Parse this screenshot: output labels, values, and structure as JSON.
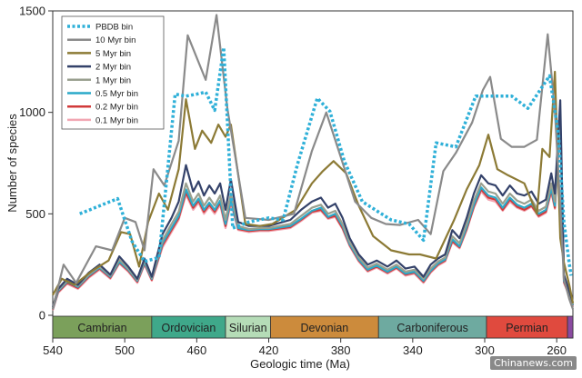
{
  "chart_data": {
    "type": "line",
    "xlabel": "Geologic time (Ma)",
    "ylabel": "Number of species",
    "xlim": [
      540,
      251
    ],
    "ylim": [
      0,
      1500
    ],
    "x_ticks": [
      540,
      500,
      460,
      420,
      380,
      340,
      300,
      260
    ],
    "y_ticks": [
      0,
      500,
      1000,
      1500
    ],
    "grid": false,
    "legend_position": "top-left",
    "periods": [
      {
        "name": "Cambrian",
        "start": 540,
        "end": 485,
        "color": "#7ba05b"
      },
      {
        "name": "Ordovician",
        "start": 485,
        "end": 444,
        "color": "#3fa88a"
      },
      {
        "name": "Silurian",
        "start": 444,
        "end": 419,
        "color": "#b5dcb7"
      },
      {
        "name": "Devonian",
        "start": 419,
        "end": 359,
        "color": "#cc8b3c"
      },
      {
        "name": "Carboniferous",
        "start": 359,
        "end": 299,
        "color": "#6eaaa0"
      },
      {
        "name": "Permian",
        "start": 299,
        "end": 254,
        "color": "#e04a3e"
      },
      {
        "name": "",
        "start": 254,
        "end": 251,
        "color": "#8a4aa0"
      }
    ],
    "series": [
      {
        "name": "PBDB bin",
        "color": "#2fb0d8",
        "dashed": true,
        "x": [
          525,
          504,
          496,
          489,
          481,
          472,
          466,
          460,
          455,
          450,
          445,
          440,
          431,
          420,
          412,
          404,
          393,
          386,
          378,
          368,
          360,
          352,
          342,
          334,
          327,
          316,
          305,
          297,
          285,
          276,
          264,
          259,
          256,
          253,
          252
        ],
        "y": [
          500,
          575,
          365,
          265,
          285,
          1090,
          1080,
          1090,
          1100,
          1010,
          1320,
          430,
          460,
          480,
          470,
          745,
          1070,
          1005,
          760,
          560,
          515,
          470,
          450,
          370,
          850,
          830,
          1080,
          1080,
          1080,
          1020,
          1180,
          890,
          460,
          255,
          195
        ]
      },
      {
        "name": "10 Myr bin",
        "color": "#8a8a8a",
        "dashed": false,
        "x": [
          540,
          534,
          527,
          516,
          507,
          500,
          494,
          489,
          484,
          478,
          470,
          465,
          455,
          449,
          443,
          433,
          420,
          406,
          396,
          388,
          380,
          372,
          363,
          355,
          347,
          337,
          330,
          323,
          316,
          307,
          301,
          297,
          291,
          285,
          278,
          271,
          265,
          261,
          258,
          256,
          253,
          251
        ],
        "y": [
          30,
          250,
          160,
          340,
          320,
          480,
          460,
          320,
          720,
          640,
          860,
          1380,
          1160,
          1480,
          1020,
          480,
          470,
          500,
          810,
          1000,
          780,
          560,
          480,
          450,
          445,
          470,
          400,
          710,
          800,
          950,
          1110,
          1175,
          870,
          830,
          830,
          865,
          1385,
          1005,
          540,
          180,
          80,
          30
        ]
      },
      {
        "name": "5 Myr bin",
        "color": "#8c7a35",
        "dashed": false,
        "x": [
          540,
          535,
          528,
          518,
          509,
          502,
          497,
          492,
          487,
          481,
          476,
          470,
          466,
          461,
          457,
          452,
          448,
          444,
          441,
          433,
          425,
          418,
          405,
          396,
          390,
          384,
          377,
          370,
          362,
          352,
          342,
          336,
          327,
          317,
          310,
          303,
          298,
          293,
          287,
          278,
          271,
          268,
          264,
          261,
          258,
          256,
          253,
          251
        ],
        "y": [
          100,
          180,
          150,
          220,
          270,
          410,
          400,
          240,
          460,
          600,
          520,
          720,
          1065,
          820,
          910,
          850,
          940,
          880,
          940,
          450,
          440,
          450,
          520,
          650,
          710,
          760,
          700,
          540,
          390,
          320,
          300,
          300,
          280,
          470,
          620,
          740,
          890,
          720,
          690,
          650,
          500,
          820,
          780,
          1200,
          380,
          260,
          150,
          60
        ]
      },
      {
        "name": "2 Myr bin",
        "color": "#34426a",
        "dashed": false,
        "x": [
          540,
          537,
          532,
          526,
          520,
          514,
          508,
          503,
          498,
          493,
          489,
          485,
          479,
          474,
          470,
          466,
          462,
          459,
          456,
          453,
          450,
          447,
          444,
          441,
          437,
          431,
          425,
          420,
          408,
          402,
          396,
          391,
          387,
          383,
          379,
          375,
          370,
          365,
          360,
          354,
          349,
          344,
          339,
          334,
          330,
          326,
          322,
          318,
          314,
          310,
          306,
          302,
          298,
          294,
          290,
          286,
          282,
          278,
          274,
          270,
          266,
          263,
          261,
          258,
          256,
          253,
          251
        ],
        "y": [
          40,
          130,
          180,
          150,
          210,
          250,
          200,
          290,
          240,
          180,
          280,
          190,
          400,
          480,
          560,
          740,
          610,
          660,
          590,
          640,
          600,
          650,
          520,
          670,
          460,
          440,
          440,
          440,
          470,
          520,
          560,
          580,
          530,
          550,
          480,
          380,
          300,
          250,
          270,
          240,
          270,
          230,
          240,
          190,
          250,
          280,
          300,
          420,
          380,
          480,
          600,
          690,
          650,
          640,
          590,
          640,
          600,
          590,
          610,
          550,
          570,
          700,
          600,
          1060,
          200,
          120,
          60
        ]
      },
      {
        "name": "1 Myr bin",
        "color": "#9aa090",
        "dashed": false,
        "x": [
          540,
          537,
          532,
          526,
          520,
          514,
          508,
          503,
          498,
          493,
          489,
          485,
          479,
          474,
          470,
          466,
          462,
          459,
          456,
          453,
          450,
          447,
          444,
          441,
          437,
          431,
          425,
          420,
          408,
          402,
          396,
          391,
          387,
          383,
          379,
          375,
          370,
          365,
          360,
          354,
          349,
          344,
          339,
          334,
          330,
          326,
          322,
          318,
          314,
          310,
          306,
          302,
          298,
          294,
          290,
          286,
          282,
          278,
          274,
          270,
          266,
          263,
          261,
          258,
          256,
          253,
          251
        ],
        "y": [
          35,
          125,
          170,
          145,
          200,
          240,
          195,
          275,
          230,
          175,
          270,
          185,
          370,
          450,
          510,
          650,
          560,
          600,
          540,
          580,
          540,
          590,
          470,
          600,
          440,
          425,
          430,
          430,
          450,
          490,
          530,
          545,
          500,
          515,
          450,
          360,
          285,
          235,
          255,
          225,
          250,
          215,
          225,
          180,
          230,
          265,
          285,
          390,
          355,
          450,
          565,
          650,
          610,
          600,
          550,
          600,
          565,
          550,
          570,
          515,
          535,
          650,
          560,
          1000,
          180,
          110,
          55
        ]
      },
      {
        "name": "0.5 Myr bin",
        "color": "#2aa9c8",
        "dashed": false,
        "x": [
          540,
          537,
          532,
          526,
          520,
          514,
          508,
          503,
          498,
          493,
          489,
          485,
          479,
          474,
          470,
          466,
          462,
          459,
          456,
          453,
          450,
          447,
          444,
          441,
          437,
          431,
          425,
          420,
          408,
          402,
          396,
          391,
          387,
          383,
          379,
          375,
          370,
          365,
          360,
          354,
          349,
          344,
          339,
          334,
          330,
          326,
          322,
          318,
          314,
          310,
          306,
          302,
          298,
          294,
          290,
          286,
          282,
          278,
          274,
          270,
          266,
          263,
          261,
          258,
          256,
          253,
          251
        ],
        "y": [
          30,
          120,
          165,
          140,
          195,
          235,
          190,
          265,
          225,
          170,
          260,
          180,
          355,
          430,
          490,
          620,
          540,
          575,
          520,
          555,
          520,
          565,
          450,
          575,
          430,
          420,
          425,
          425,
          440,
          475,
          515,
          530,
          485,
          500,
          440,
          350,
          275,
          225,
          245,
          215,
          240,
          205,
          215,
          170,
          220,
          255,
          275,
          375,
          340,
          435,
          545,
          630,
          590,
          580,
          530,
          580,
          545,
          530,
          550,
          500,
          520,
          625,
          540,
          975,
          170,
          105,
          50
        ]
      },
      {
        "name": "0.2 Myr bin",
        "color": "#d13a3a",
        "dashed": false,
        "x": [
          540,
          537,
          532,
          526,
          520,
          514,
          508,
          503,
          498,
          493,
          489,
          485,
          479,
          474,
          470,
          466,
          462,
          459,
          456,
          453,
          450,
          447,
          444,
          441,
          437,
          431,
          425,
          420,
          408,
          402,
          396,
          391,
          387,
          383,
          379,
          375,
          370,
          365,
          360,
          354,
          349,
          344,
          339,
          334,
          330,
          326,
          322,
          318,
          314,
          310,
          306,
          302,
          298,
          294,
          290,
          286,
          282,
          278,
          274,
          270,
          266,
          263,
          261,
          258,
          256,
          253,
          251
        ],
        "y": [
          28,
          115,
          160,
          135,
          190,
          230,
          185,
          260,
          220,
          165,
          255,
          175,
          345,
          420,
          480,
          605,
          530,
          565,
          510,
          545,
          510,
          555,
          440,
          565,
          425,
          415,
          420,
          420,
          435,
          470,
          510,
          520,
          480,
          490,
          430,
          345,
          270,
          220,
          240,
          210,
          235,
          200,
          210,
          165,
          215,
          250,
          270,
          365,
          335,
          425,
          535,
          620,
          580,
          570,
          520,
          570,
          535,
          520,
          540,
          490,
          510,
          615,
          530,
          960,
          165,
          100,
          48
        ]
      },
      {
        "name": "0.1 Myr bin",
        "color": "#f2a6b2",
        "dashed": false,
        "x": [
          540,
          537,
          532,
          526,
          520,
          514,
          508,
          503,
          498,
          493,
          489,
          485,
          479,
          474,
          470,
          466,
          462,
          459,
          456,
          453,
          450,
          447,
          444,
          441,
          437,
          431,
          425,
          420,
          408,
          402,
          396,
          391,
          387,
          383,
          379,
          375,
          370,
          365,
          360,
          354,
          349,
          344,
          339,
          334,
          330,
          326,
          322,
          318,
          314,
          310,
          306,
          302,
          298,
          294,
          290,
          286,
          282,
          278,
          274,
          270,
          266,
          263,
          261,
          258,
          256,
          253,
          251
        ],
        "y": [
          25,
          110,
          155,
          130,
          185,
          225,
          180,
          255,
          215,
          160,
          250,
          170,
          335,
          410,
          470,
          595,
          520,
          555,
          500,
          535,
          500,
          545,
          430,
          555,
          420,
          410,
          415,
          415,
          430,
          465,
          505,
          515,
          475,
          485,
          425,
          340,
          265,
          215,
          235,
          205,
          230,
          195,
          205,
          160,
          210,
          245,
          265,
          360,
          330,
          420,
          530,
          610,
          570,
          560,
          515,
          560,
          530,
          515,
          535,
          485,
          505,
          605,
          525,
          950,
          160,
          95,
          45
        ]
      }
    ]
  },
  "watermark": "Chinanews.com"
}
